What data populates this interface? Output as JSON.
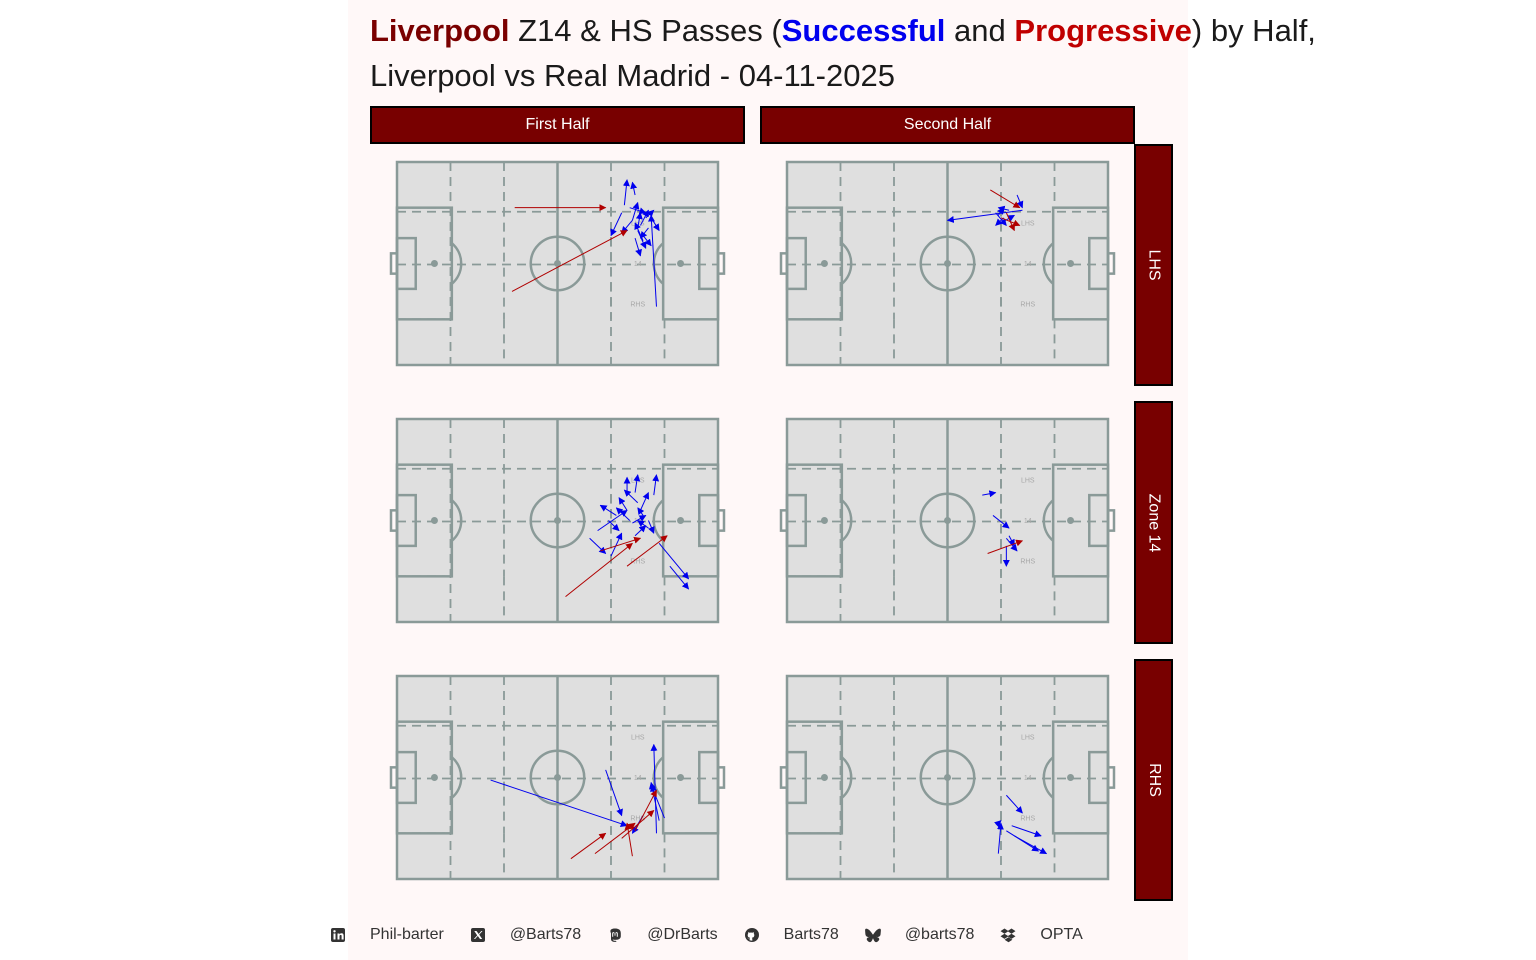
{
  "title": {
    "club": "Liverpool",
    "part1": " Z14 & HS Passes (",
    "successful": "Successful",
    "part2": " and ",
    "progressive": "Progressive",
    "part3": ") by Half,",
    "line2": "Liverpool vs Real Madrid - 04-11-2025"
  },
  "facets": {
    "columns": [
      "First Half",
      "Second Half"
    ],
    "rows": [
      "LHS",
      "Zone 14",
      "RHS"
    ]
  },
  "pitch_labels": {
    "lhs": "LHS",
    "z14": "14",
    "rhs": "RHS"
  },
  "footer": {
    "linkedin": "Phil-barter",
    "x": "@Barts78",
    "mastodon": "@DrBarts",
    "github": "Barts78",
    "bluesky": "@barts78",
    "source": "OPTA"
  },
  "colors": {
    "successful": "#0000ee",
    "progressive": "#b00000",
    "strip": "#780000",
    "pitch": "#dfdfdf",
    "lines": "#8a9a98"
  },
  "chart_data": {
    "type": "pass-map",
    "pitch": {
      "x_range": [
        0,
        120
      ],
      "y_range": [
        0,
        80
      ],
      "attack": "left-to-right"
    },
    "panels": [
      {
        "row": "LHS",
        "col": "First Half",
        "progressive": [
          {
            "x1": 44,
            "y1": 62,
            "x2": 78,
            "y2": 62
          },
          {
            "x1": 43,
            "y1": 29,
            "x2": 86,
            "y2": 53
          }
        ],
        "successful": [
          {
            "x1": 85,
            "y1": 63,
            "x2": 86,
            "y2": 73
          },
          {
            "x1": 89,
            "y1": 67,
            "x2": 88,
            "y2": 72
          },
          {
            "x1": 84,
            "y1": 60,
            "x2": 80,
            "y2": 51
          },
          {
            "x1": 87,
            "y1": 62,
            "x2": 93,
            "y2": 60
          },
          {
            "x1": 88,
            "y1": 57,
            "x2": 90,
            "y2": 64
          },
          {
            "x1": 91,
            "y1": 55,
            "x2": 94,
            "y2": 61
          },
          {
            "x1": 93,
            "y1": 58,
            "x2": 96,
            "y2": 61
          },
          {
            "x1": 90,
            "y1": 54,
            "x2": 91,
            "y2": 60
          },
          {
            "x1": 92,
            "y1": 49,
            "x2": 89,
            "y2": 56
          },
          {
            "x1": 94,
            "y1": 54,
            "x2": 91,
            "y2": 50
          },
          {
            "x1": 90,
            "y1": 53,
            "x2": 93,
            "y2": 46
          },
          {
            "x1": 92,
            "y1": 51,
            "x2": 95,
            "y2": 47
          },
          {
            "x1": 89,
            "y1": 50,
            "x2": 91,
            "y2": 43
          },
          {
            "x1": 95,
            "y1": 58,
            "x2": 98,
            "y2": 53
          },
          {
            "x1": 97,
            "y1": 23,
            "x2": 95,
            "y2": 59
          },
          {
            "x1": 88,
            "y1": 57,
            "x2": 84,
            "y2": 52
          }
        ]
      },
      {
        "row": "LHS",
        "col": "Second Half",
        "progressive": [
          {
            "x1": 76,
            "y1": 69,
            "x2": 87,
            "y2": 62
          },
          {
            "x1": 82,
            "y1": 60,
            "x2": 85,
            "y2": 53
          },
          {
            "x1": 80,
            "y1": 58,
            "x2": 87,
            "y2": 55
          }
        ],
        "successful": [
          {
            "x1": 86,
            "y1": 67,
            "x2": 88,
            "y2": 62
          },
          {
            "x1": 88,
            "y1": 61,
            "x2": 60,
            "y2": 57
          },
          {
            "x1": 83,
            "y1": 61,
            "x2": 79,
            "y2": 62
          },
          {
            "x1": 78,
            "y1": 60,
            "x2": 82,
            "y2": 55
          },
          {
            "x1": 81,
            "y1": 58,
            "x2": 78,
            "y2": 55
          },
          {
            "x1": 79,
            "y1": 59,
            "x2": 81,
            "y2": 62
          },
          {
            "x1": 80,
            "y1": 56,
            "x2": 85,
            "y2": 59
          }
        ]
      },
      {
        "row": "Zone 14",
        "col": "First Half",
        "progressive": [
          {
            "x1": 63,
            "y1": 10,
            "x2": 88,
            "y2": 31
          },
          {
            "x1": 76,
            "y1": 28,
            "x2": 91,
            "y2": 33
          },
          {
            "x1": 86,
            "y1": 22,
            "x2": 101,
            "y2": 34
          }
        ],
        "successful": [
          {
            "x1": 86,
            "y1": 50,
            "x2": 86,
            "y2": 57
          },
          {
            "x1": 89,
            "y1": 51,
            "x2": 90,
            "y2": 58
          },
          {
            "x1": 96,
            "y1": 50,
            "x2": 97,
            "y2": 58
          },
          {
            "x1": 90,
            "y1": 47,
            "x2": 85,
            "y2": 52
          },
          {
            "x1": 86,
            "y1": 44,
            "x2": 83,
            "y2": 49
          },
          {
            "x1": 87,
            "y1": 40,
            "x2": 82,
            "y2": 45
          },
          {
            "x1": 82,
            "y1": 42,
            "x2": 76,
            "y2": 46
          },
          {
            "x1": 79,
            "y1": 40,
            "x2": 83,
            "y2": 36
          },
          {
            "x1": 92,
            "y1": 42,
            "x2": 90,
            "y2": 45
          },
          {
            "x1": 88,
            "y1": 39,
            "x2": 93,
            "y2": 42
          },
          {
            "x1": 94,
            "y1": 37,
            "x2": 90,
            "y2": 40
          },
          {
            "x1": 91,
            "y1": 44,
            "x2": 94,
            "y2": 51
          },
          {
            "x1": 94,
            "y1": 40,
            "x2": 96,
            "y2": 35
          },
          {
            "x1": 75,
            "y1": 36,
            "x2": 86,
            "y2": 44
          },
          {
            "x1": 80,
            "y1": 26,
            "x2": 84,
            "y2": 35
          },
          {
            "x1": 72,
            "y1": 33,
            "x2": 78,
            "y2": 27
          },
          {
            "x1": 89,
            "y1": 34,
            "x2": 93,
            "y2": 38
          },
          {
            "x1": 98,
            "y1": 31,
            "x2": 109,
            "y2": 17
          },
          {
            "x1": 102,
            "y1": 22,
            "x2": 109,
            "y2": 13
          }
        ]
      },
      {
        "row": "Zone 14",
        "col": "Second Half",
        "progressive": [
          {
            "x1": 75,
            "y1": 27,
            "x2": 88,
            "y2": 32
          }
        ],
        "successful": [
          {
            "x1": 73,
            "y1": 50,
            "x2": 78,
            "y2": 51
          },
          {
            "x1": 77,
            "y1": 42,
            "x2": 83,
            "y2": 37
          },
          {
            "x1": 83,
            "y1": 34,
            "x2": 85,
            "y2": 30
          },
          {
            "x1": 82,
            "y1": 30,
            "x2": 82,
            "y2": 22
          },
          {
            "x1": 82,
            "y1": 33,
            "x2": 86,
            "y2": 28
          }
        ]
      },
      {
        "row": "RHS",
        "col": "First Half",
        "progressive": [
          {
            "x1": 65,
            "y1": 8,
            "x2": 78,
            "y2": 18
          },
          {
            "x1": 74,
            "y1": 10,
            "x2": 89,
            "y2": 22
          },
          {
            "x1": 88,
            "y1": 9,
            "x2": 86,
            "y2": 22
          },
          {
            "x1": 84,
            "y1": 16,
            "x2": 96,
            "y2": 27
          },
          {
            "x1": 89,
            "y1": 19,
            "x2": 97,
            "y2": 35
          }
        ],
        "successful": [
          {
            "x1": 35,
            "y1": 39,
            "x2": 86,
            "y2": 21
          },
          {
            "x1": 78,
            "y1": 43,
            "x2": 84,
            "y2": 25
          },
          {
            "x1": 98,
            "y1": 23,
            "x2": 95,
            "y2": 38
          },
          {
            "x1": 97,
            "y1": 18,
            "x2": 96,
            "y2": 53
          },
          {
            "x1": 100,
            "y1": 24,
            "x2": 95,
            "y2": 37
          },
          {
            "x1": 92,
            "y1": 25,
            "x2": 88,
            "y2": 18
          }
        ]
      },
      {
        "row": "RHS",
        "col": "Second Half",
        "progressive": [],
        "successful": [
          {
            "x1": 82,
            "y1": 33,
            "x2": 88,
            "y2": 26
          },
          {
            "x1": 79,
            "y1": 22,
            "x2": 80,
            "y2": 23
          },
          {
            "x1": 84,
            "y1": 21,
            "x2": 95,
            "y2": 17
          },
          {
            "x1": 79,
            "y1": 10,
            "x2": 80,
            "y2": 22
          },
          {
            "x1": 82,
            "y1": 19,
            "x2": 94,
            "y2": 11
          },
          {
            "x1": 85,
            "y1": 17,
            "x2": 97,
            "y2": 10
          }
        ]
      }
    ]
  }
}
